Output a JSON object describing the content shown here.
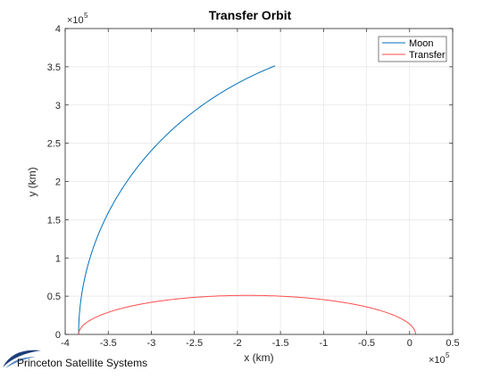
{
  "chart_data": {
    "type": "line",
    "title": "Transfer Orbit",
    "xlabel": "x (km)",
    "ylabel": "y (km)",
    "xlim": [
      -400000,
      50000
    ],
    "ylim": [
      0,
      400000
    ],
    "x_exponent_label": "×10",
    "x_exponent_power": "5",
    "y_exponent_label": "×10",
    "y_exponent_power": "5",
    "x_ticks": [
      -400000,
      -350000,
      -300000,
      -250000,
      -200000,
      -150000,
      -100000,
      -50000,
      0,
      50000
    ],
    "x_tick_labels": [
      "-4",
      "-3.5",
      "-3",
      "-2.5",
      "-2",
      "-1.5",
      "-1",
      "-0.5",
      "0",
      "0.5"
    ],
    "y_ticks": [
      0,
      50000,
      100000,
      150000,
      200000,
      250000,
      300000,
      350000,
      400000
    ],
    "y_tick_labels": [
      "0",
      "0.5",
      "1",
      "1.5",
      "2",
      "2.5",
      "3",
      "3.5",
      "4"
    ],
    "grid": true,
    "legend_position": "top-right",
    "series": [
      {
        "name": "Moon",
        "color": "#0072bd",
        "curve": "circle-arc",
        "center": [
          0,
          0
        ],
        "radius": 384400,
        "theta_start_deg": 180,
        "theta_end_deg": 114,
        "x": [
          -384400,
          -382300,
          -376000,
          -365600,
          -351200,
          -333000,
          -311000,
          -285500,
          -256800,
          -225400,
          -191600,
          -156400
        ],
        "y": [
          0,
          40200,
          79900,
          118800,
          156400,
          192200,
          226000,
          257400,
          286000,
          311000,
          333200,
          351100
        ]
      },
      {
        "name": "Transfer",
        "color": "#ff4d4d",
        "curve": "semi-ellipse",
        "center": [
          -188750,
          0
        ],
        "semi_major_axis": 195650,
        "semi_minor_axis": 51000,
        "x": [
          6900,
          -18000,
          -50000,
          -93000,
          -140000,
          -188750,
          -237500,
          -284500,
          -327500,
          -360000,
          -384400
        ],
        "y": [
          0,
          23500,
          37300,
          46200,
          50400,
          51000,
          50400,
          46200,
          37300,
          23500,
          0
        ]
      }
    ]
  },
  "branding": {
    "logo_text": "Princeton Satellite Systems",
    "logo_icon": "swoosh-logo-icon"
  }
}
